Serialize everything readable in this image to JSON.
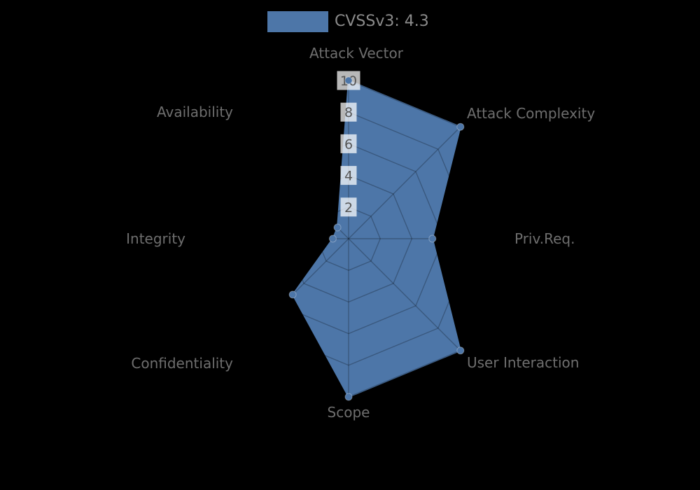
{
  "chart_data": {
    "type": "radar",
    "legend": {
      "label": "CVSSv3: 4.3",
      "swatch_color": "#4d76a8",
      "text_color": "#8b8b8b",
      "position": "top-center"
    },
    "axes": [
      "Attack Vector",
      "Attack Complexity",
      "Priv.Req.",
      "User Interaction",
      "Scope",
      "Confidentiality",
      "Integrity",
      "Availability"
    ],
    "series": [
      {
        "name": "CVSSv3: 4.3",
        "values": [
          10,
          10,
          5.3,
          10,
          10,
          5,
          1,
          1
        ],
        "color": "#4d76a8"
      }
    ],
    "radial_ticks": [
      2,
      4,
      6,
      8,
      10
    ],
    "r_min": 0,
    "r_max": 10,
    "grid": "spider-web",
    "colors": {
      "background": "#000000",
      "fill": "#4d76a8",
      "grid_line": "rgba(0,0,0,0.25)",
      "axis_label_text": "#6e6e6e",
      "tick_text": "#565656",
      "tick_box": "rgba(255,255,255,0.72)",
      "dot_stroke": "rgba(255,255,255,0.3)"
    }
  }
}
